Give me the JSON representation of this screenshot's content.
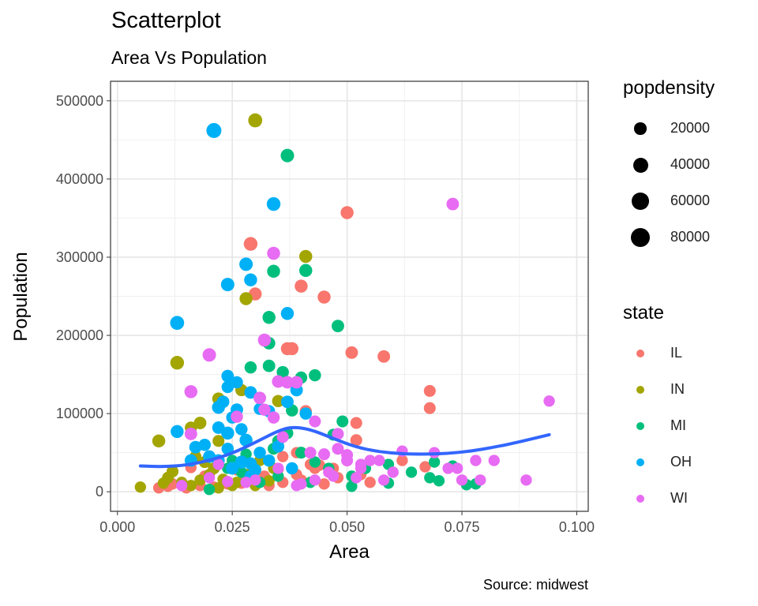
{
  "chart_data": {
    "type": "scatter",
    "title": "Scatterplot",
    "subtitle": "Area Vs Population",
    "caption": "Source: midwest",
    "xlabel": "Area",
    "ylabel": "Population",
    "xlim": [
      -0.0015,
      0.1025
    ],
    "ylim": [
      -25000,
      525000
    ],
    "x_ticks": [
      0.0,
      0.025,
      0.05,
      0.075,
      0.1
    ],
    "x_tick_labels": [
      "0.000",
      "0.025",
      "0.050",
      "0.075",
      "0.100"
    ],
    "y_ticks": [
      0,
      100000,
      200000,
      300000,
      400000,
      500000
    ],
    "y_tick_labels": [
      "0",
      "100000",
      "200000",
      "300000",
      "400000",
      "500000"
    ],
    "grid": true,
    "legend_position": "right",
    "size_legend": {
      "title": "popdensity",
      "entries": [
        {
          "label": "20000",
          "value": 20000
        },
        {
          "label": "40000",
          "value": 40000
        },
        {
          "label": "60000",
          "value": 60000
        },
        {
          "label": "80000",
          "value": 80000
        }
      ]
    },
    "color_legend": {
      "title": "state",
      "entries": [
        {
          "label": "IL",
          "color": "#F8766D"
        },
        {
          "label": "IN",
          "color": "#A3A500"
        },
        {
          "label": "MI",
          "color": "#00BF7D"
        },
        {
          "label": "OH",
          "color": "#00B0F6"
        },
        {
          "label": "WI",
          "color": "#E76BF3"
        }
      ]
    },
    "smooth": {
      "color": "#3366FF",
      "x": [
        0.005,
        0.01,
        0.015,
        0.02,
        0.025,
        0.03,
        0.035,
        0.038,
        0.042,
        0.047,
        0.052,
        0.057,
        0.062,
        0.067,
        0.072,
        0.077,
        0.082,
        0.087,
        0.094
      ],
      "y": [
        33000,
        32000,
        34000,
        40000,
        49000,
        63000,
        78000,
        83000,
        80000,
        68000,
        57000,
        51000,
        48500,
        48000,
        49000,
        52000,
        57000,
        63000,
        73000
      ]
    },
    "series": [
      {
        "name": "IL",
        "color": "#F8766D",
        "points": [
          [
            0.029,
            317000,
            30000
          ],
          [
            0.05,
            357000,
            25000
          ],
          [
            0.03,
            253000,
            25000
          ],
          [
            0.04,
            263000,
            25000
          ],
          [
            0.045,
            249000,
            25000
          ],
          [
            0.037,
            183000,
            25000
          ],
          [
            0.038,
            183000,
            25000
          ],
          [
            0.051,
            178000,
            22000
          ],
          [
            0.058,
            173000,
            22000
          ],
          [
            0.068,
            129000,
            18000
          ],
          [
            0.068,
            107000,
            18000
          ],
          [
            0.041,
            103000,
            20000
          ],
          [
            0.052,
            88000,
            18000
          ],
          [
            0.052,
            66000,
            18000
          ],
          [
            0.062,
            40000,
            15000
          ],
          [
            0.067,
            32000,
            15000
          ],
          [
            0.047,
            30000,
            15000
          ],
          [
            0.043,
            30000,
            15000
          ],
          [
            0.039,
            22000,
            15000
          ],
          [
            0.035,
            29000,
            15000
          ],
          [
            0.032,
            20000,
            15000
          ],
          [
            0.029,
            22000,
            15000
          ],
          [
            0.027,
            11000,
            15000
          ],
          [
            0.024,
            10000,
            15000
          ],
          [
            0.021,
            6000,
            15000
          ],
          [
            0.018,
            8000,
            15000
          ],
          [
            0.016,
            31000,
            15000
          ],
          [
            0.015,
            5000,
            15000
          ],
          [
            0.012,
            10000,
            15000
          ],
          [
            0.011,
            7000,
            15000
          ],
          [
            0.009,
            5000,
            15000
          ],
          [
            0.033,
            8000,
            15000
          ],
          [
            0.036,
            12000,
            15000
          ],
          [
            0.04,
            15000,
            15000
          ],
          [
            0.045,
            10000,
            15000
          ],
          [
            0.048,
            18000,
            15000
          ],
          [
            0.053,
            22000,
            15000
          ],
          [
            0.055,
            12000,
            15000
          ],
          [
            0.042,
            35000,
            15000
          ],
          [
            0.039,
            50000,
            15000
          ],
          [
            0.044,
            34000,
            15000
          ],
          [
            0.036,
            45000,
            15000
          ],
          [
            0.026,
            28000,
            15000
          ],
          [
            0.019,
            20000,
            15000
          ]
        ]
      },
      {
        "name": "IN",
        "color": "#A3A500",
        "points": [
          [
            0.03,
            475000,
            32000
          ],
          [
            0.041,
            301000,
            25000
          ],
          [
            0.028,
            247000,
            25000
          ],
          [
            0.013,
            165000,
            30000
          ],
          [
            0.009,
            65000,
            25000
          ],
          [
            0.018,
            88000,
            22000
          ],
          [
            0.022,
            119000,
            22000
          ],
          [
            0.027,
            130000,
            20000
          ],
          [
            0.035,
            116000,
            20000
          ],
          [
            0.016,
            82000,
            20000
          ],
          [
            0.022,
            65000,
            18000
          ],
          [
            0.017,
            45000,
            18000
          ],
          [
            0.019,
            38000,
            18000
          ],
          [
            0.021,
            30000,
            18000
          ],
          [
            0.011,
            18000,
            18000
          ],
          [
            0.012,
            26000,
            18000
          ],
          [
            0.014,
            12000,
            15000
          ],
          [
            0.016,
            8000,
            15000
          ],
          [
            0.02,
            22000,
            15000
          ],
          [
            0.023,
            16000,
            15000
          ],
          [
            0.026,
            12000,
            15000
          ],
          [
            0.028,
            22000,
            15000
          ],
          [
            0.031,
            40000,
            15000
          ],
          [
            0.034,
            30000,
            15000
          ],
          [
            0.033,
            14000,
            15000
          ],
          [
            0.022,
            5000,
            15000
          ],
          [
            0.018,
            15000,
            15000
          ],
          [
            0.005,
            6000,
            15000
          ],
          [
            0.01,
            11000,
            15000
          ],
          [
            0.03,
            8000,
            15000
          ],
          [
            0.025,
            8000,
            15000
          ]
        ]
      },
      {
        "name": "MI",
        "color": "#00BF7D",
        "points": [
          [
            0.037,
            430000,
            28000
          ],
          [
            0.034,
            282000,
            25000
          ],
          [
            0.041,
            283000,
            25000
          ],
          [
            0.033,
            223000,
            25000
          ],
          [
            0.048,
            212000,
            22000
          ],
          [
            0.033,
            190000,
            22000
          ],
          [
            0.033,
            161000,
            22000
          ],
          [
            0.029,
            159000,
            20000
          ],
          [
            0.04,
            146000,
            20000
          ],
          [
            0.043,
            149000,
            20000
          ],
          [
            0.036,
            153000,
            20000
          ],
          [
            0.038,
            104000,
            20000
          ],
          [
            0.049,
            90000,
            18000
          ],
          [
            0.047,
            73000,
            18000
          ],
          [
            0.037,
            75000,
            18000
          ],
          [
            0.035,
            65000,
            18000
          ],
          [
            0.034,
            55000,
            18000
          ],
          [
            0.04,
            50000,
            18000
          ],
          [
            0.043,
            38000,
            15000
          ],
          [
            0.046,
            30000,
            15000
          ],
          [
            0.051,
            20000,
            15000
          ],
          [
            0.054,
            30000,
            15000
          ],
          [
            0.059,
            35000,
            15000
          ],
          [
            0.064,
            25000,
            15000
          ],
          [
            0.068,
            18000,
            15000
          ],
          [
            0.07,
            14000,
            15000
          ],
          [
            0.073,
            33000,
            15000
          ],
          [
            0.069,
            38000,
            15000
          ],
          [
            0.076,
            9000,
            15000
          ],
          [
            0.078,
            10000,
            15000
          ],
          [
            0.059,
            11000,
            15000
          ],
          [
            0.051,
            7000,
            15000
          ],
          [
            0.042,
            12000,
            15000
          ],
          [
            0.031,
            12000,
            15000
          ],
          [
            0.027,
            25000,
            15000
          ],
          [
            0.024,
            30000,
            15000
          ],
          [
            0.028,
            48000,
            15000
          ],
          [
            0.035,
            20000,
            15000
          ],
          [
            0.02,
            3000,
            15000
          ],
          [
            0.025,
            40000,
            15000
          ]
        ]
      },
      {
        "name": "OH",
        "color": "#00B0F6",
        "points": [
          [
            0.021,
            462000,
            40000
          ],
          [
            0.034,
            368000,
            30000
          ],
          [
            0.028,
            291000,
            28000
          ],
          [
            0.029,
            271000,
            25000
          ],
          [
            0.024,
            265000,
            28000
          ],
          [
            0.013,
            216000,
            32000
          ],
          [
            0.037,
            228000,
            25000
          ],
          [
            0.024,
            148000,
            22000
          ],
          [
            0.026,
            140000,
            20000
          ],
          [
            0.024,
            134000,
            20000
          ],
          [
            0.029,
            127000,
            22000
          ],
          [
            0.039,
            130000,
            22000
          ],
          [
            0.037,
            115000,
            22000
          ],
          [
            0.023,
            115000,
            22000
          ],
          [
            0.022,
            108000,
            25000
          ],
          [
            0.026,
            105000,
            22000
          ],
          [
            0.025,
            95000,
            20000
          ],
          [
            0.031,
            106000,
            20000
          ],
          [
            0.033,
            103000,
            20000
          ],
          [
            0.041,
            100000,
            20000
          ],
          [
            0.022,
            82000,
            22000
          ],
          [
            0.027,
            80000,
            20000
          ],
          [
            0.024,
            75000,
            25000
          ],
          [
            0.028,
            66000,
            25000
          ],
          [
            0.013,
            77000,
            25000
          ],
          [
            0.017,
            57000,
            22000
          ],
          [
            0.02,
            45000,
            22000
          ],
          [
            0.022,
            40000,
            22000
          ],
          [
            0.029,
            36000,
            22000
          ],
          [
            0.031,
            50000,
            20000
          ],
          [
            0.025,
            30000,
            22000
          ],
          [
            0.016,
            40000,
            22000
          ],
          [
            0.019,
            60000,
            20000
          ],
          [
            0.024,
            55000,
            20000
          ],
          [
            0.033,
            40000,
            20000
          ],
          [
            0.038,
            30000,
            20000
          ],
          [
            0.035,
            58000,
            20000
          ],
          [
            0.027,
            38000,
            25000
          ],
          [
            0.03,
            28000,
            20000
          ],
          [
            0.029,
            20000,
            20000
          ]
        ]
      },
      {
        "name": "WI",
        "color": "#E76BF3",
        "points": [
          [
            0.073,
            368000,
            22000
          ],
          [
            0.034,
            305000,
            25000
          ],
          [
            0.02,
            175000,
            28000
          ],
          [
            0.032,
            194000,
            25000
          ],
          [
            0.016,
            128000,
            25000
          ],
          [
            0.035,
            141000,
            22000
          ],
          [
            0.039,
            140000,
            22000
          ],
          [
            0.037,
            140000,
            22000
          ],
          [
            0.094,
            116000,
            15000
          ],
          [
            0.031,
            120000,
            22000
          ],
          [
            0.032,
            105000,
            20000
          ],
          [
            0.026,
            96000,
            20000
          ],
          [
            0.034,
            95000,
            20000
          ],
          [
            0.043,
            90000,
            18000
          ],
          [
            0.048,
            74000,
            18000
          ],
          [
            0.042,
            50000,
            18000
          ],
          [
            0.045,
            48000,
            18000
          ],
          [
            0.05,
            47000,
            18000
          ],
          [
            0.048,
            55000,
            18000
          ],
          [
            0.062,
            52000,
            15000
          ],
          [
            0.069,
            50000,
            15000
          ],
          [
            0.055,
            40000,
            15000
          ],
          [
            0.05,
            40000,
            18000
          ],
          [
            0.053,
            35000,
            15000
          ],
          [
            0.057,
            40000,
            15000
          ],
          [
            0.06,
            25000,
            15000
          ],
          [
            0.052,
            18000,
            15000
          ],
          [
            0.058,
            15000,
            15000
          ],
          [
            0.078,
            40000,
            15000
          ],
          [
            0.082,
            40000,
            15000
          ],
          [
            0.072,
            30000,
            15000
          ],
          [
            0.074,
            30000,
            15000
          ],
          [
            0.075,
            15000,
            15000
          ],
          [
            0.079,
            15000,
            15000
          ],
          [
            0.089,
            15000,
            15000
          ],
          [
            0.047,
            20000,
            15000
          ],
          [
            0.043,
            15000,
            15000
          ],
          [
            0.04,
            10000,
            15000
          ],
          [
            0.036,
            70000,
            18000
          ],
          [
            0.016,
            74000,
            22000
          ],
          [
            0.02,
            18000,
            15000
          ],
          [
            0.024,
            13000,
            15000
          ],
          [
            0.028,
            12000,
            15000
          ],
          [
            0.022,
            35000,
            15000
          ],
          [
            0.035,
            30000,
            15000
          ],
          [
            0.046,
            25000,
            15000
          ],
          [
            0.053,
            30000,
            15000
          ],
          [
            0.039,
            8000,
            15000
          ],
          [
            0.014,
            8000,
            15000
          ],
          [
            0.03,
            15000,
            15000
          ]
        ]
      }
    ]
  }
}
